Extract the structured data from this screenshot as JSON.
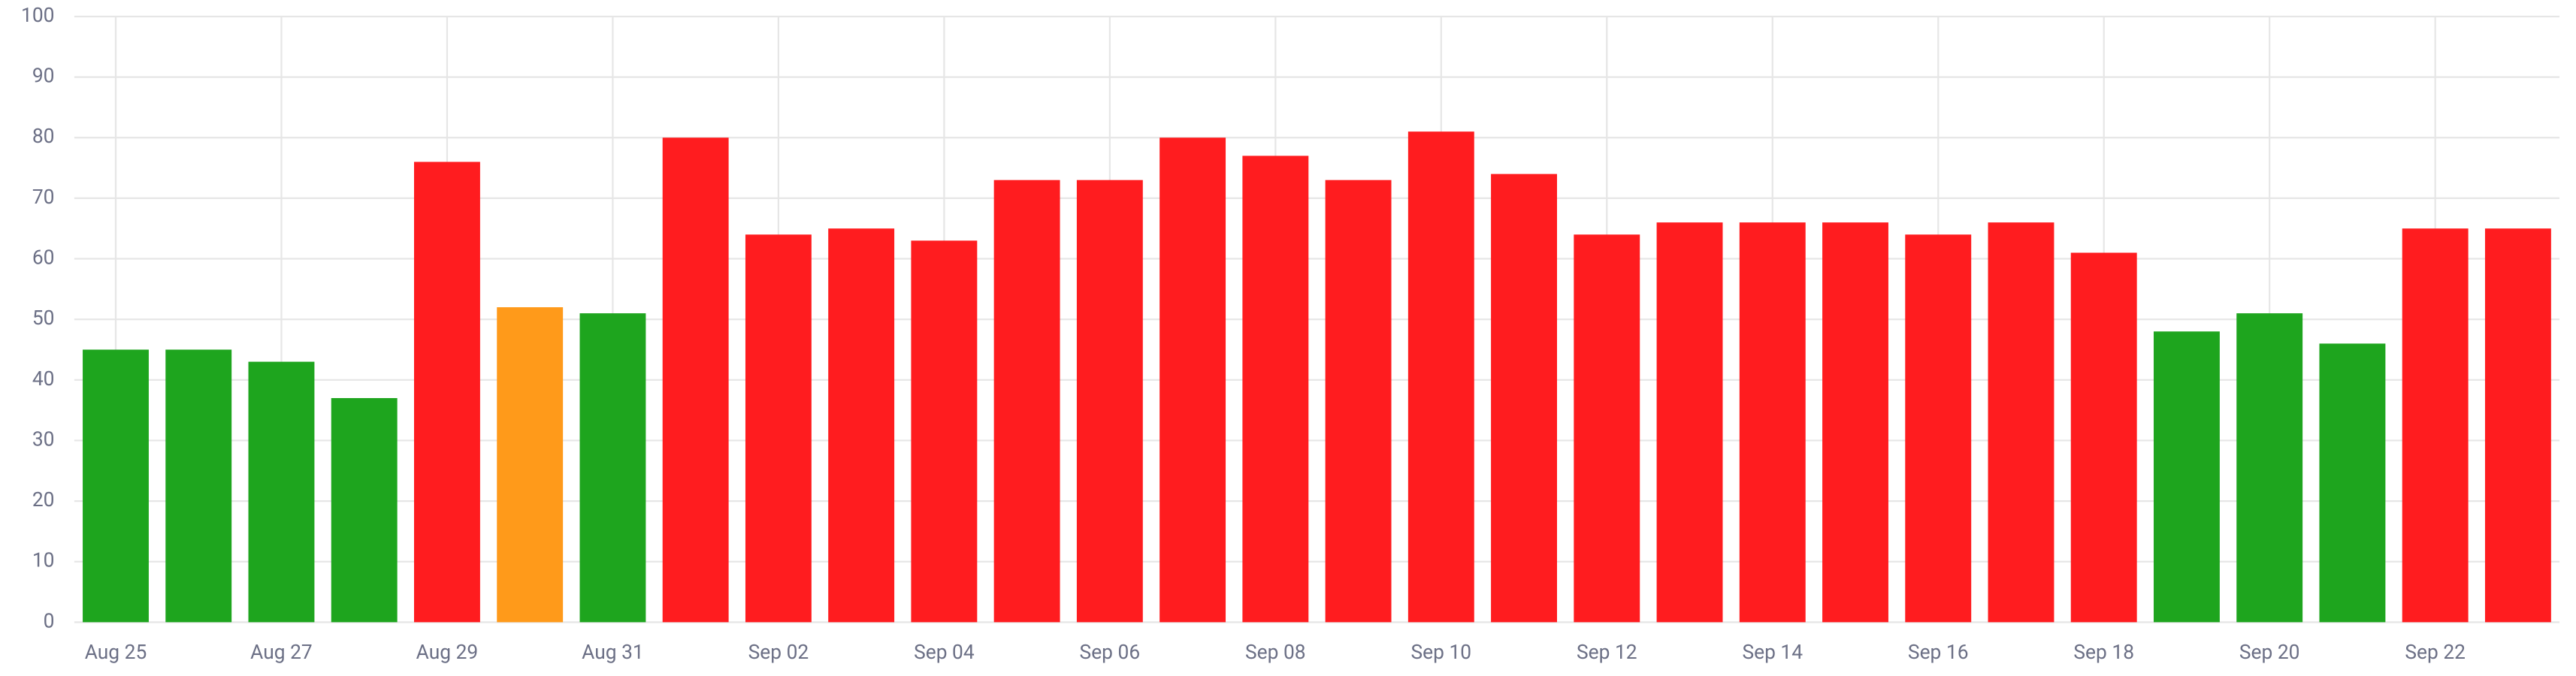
{
  "chart_data": {
    "type": "bar",
    "categories": [
      "Aug 25",
      null,
      "Aug 27",
      null,
      "Aug 29",
      null,
      "Aug 31",
      null,
      "Sep 02",
      null,
      "Sep 04",
      null,
      "Sep 06",
      null,
      "Sep 08",
      null,
      "Sep 10",
      null,
      "Sep 12",
      null,
      "Sep 14",
      null,
      "Sep 16",
      null,
      "Sep 18",
      null,
      "Sep 20",
      null,
      "Sep 22",
      null
    ],
    "values": [
      45,
      45,
      43,
      37,
      76,
      52,
      51,
      80,
      64,
      65,
      63,
      73,
      73,
      80,
      77,
      73,
      81,
      74,
      64,
      66,
      66,
      66,
      64,
      66,
      61,
      48,
      51,
      46,
      65,
      65
    ],
    "colors": [
      "#1ea51e",
      "#1ea51e",
      "#1ea51e",
      "#1ea51e",
      "#ff1c1f",
      "#ff9a1a",
      "#1ea51e",
      "#ff1c1f",
      "#ff1c1f",
      "#ff1c1f",
      "#ff1c1f",
      "#ff1c1f",
      "#ff1c1f",
      "#ff1c1f",
      "#ff1c1f",
      "#ff1c1f",
      "#ff1c1f",
      "#ff1c1f",
      "#ff1c1f",
      "#ff1c1f",
      "#ff1c1f",
      "#ff1c1f",
      "#ff1c1f",
      "#ff1c1f",
      "#ff1c1f",
      "#1ea51e",
      "#1ea51e",
      "#1ea51e",
      "#ff1c1f",
      "#ff1c1f"
    ],
    "ylim": [
      0,
      100
    ],
    "yticks": [
      0,
      10,
      20,
      30,
      40,
      50,
      60,
      70,
      80,
      90,
      100
    ],
    "grid": true
  }
}
